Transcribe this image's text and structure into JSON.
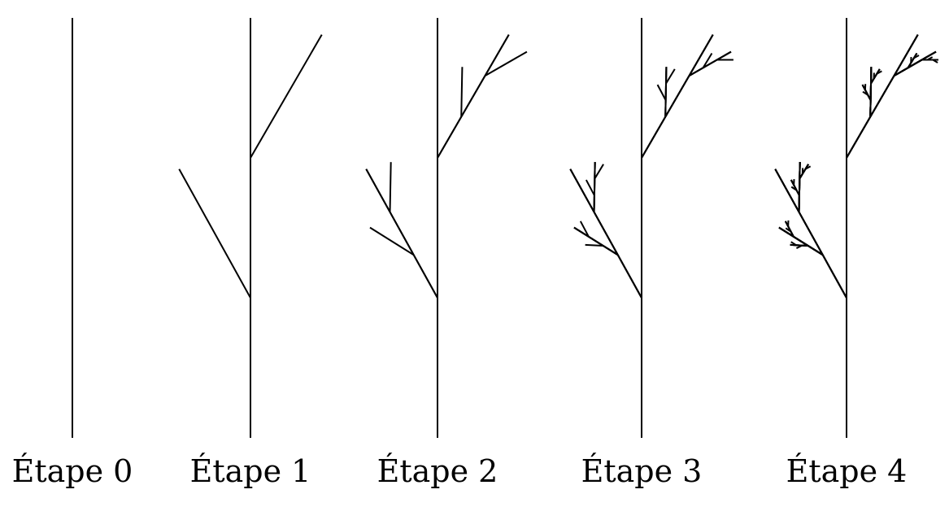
{
  "figure": {
    "line_color": "#000000",
    "background_color": "#ffffff",
    "stages": [
      {
        "label": "Étape 0",
        "iteration": 0
      },
      {
        "label": "Étape 1",
        "iteration": 1
      },
      {
        "label": "Étape 2",
        "iteration": 2
      },
      {
        "label": "Étape 3",
        "iteration": 3
      },
      {
        "label": "Étape 4",
        "iteration": 4
      }
    ]
  }
}
